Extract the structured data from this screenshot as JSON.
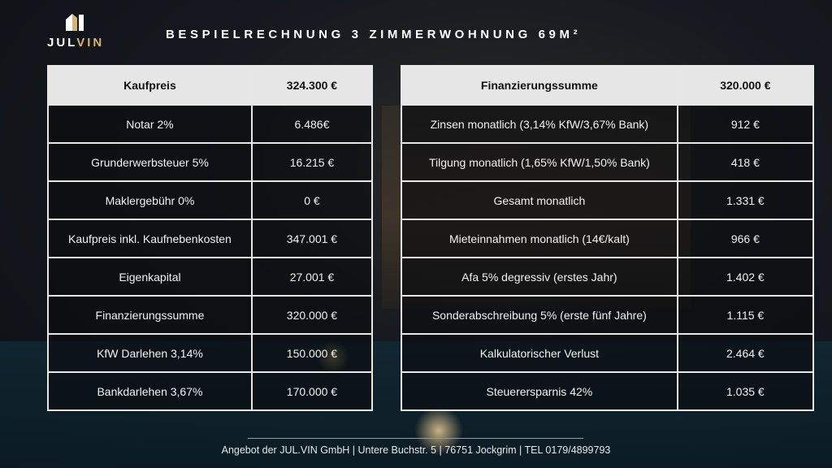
{
  "logo": {
    "text_main": "JUL",
    "text_accent": "VIN"
  },
  "title": "BESPIELRECHNUNG 3 ZIMMERWOHNUNG 69M²",
  "left_table": {
    "header": {
      "label": "Kaufpreis",
      "value": "324.300 €"
    },
    "rows": [
      {
        "label": "Notar 2%",
        "value": "6.486€"
      },
      {
        "label": "Grunderwerbsteuer 5%",
        "value": "16.215 €"
      },
      {
        "label": "Maklergebühr 0%",
        "value": "0 €"
      },
      {
        "label": "Kaufpreis inkl. Kaufnebenkosten",
        "value": "347.001 €"
      },
      {
        "label": "Eigenkapital",
        "value": "27.001 €"
      },
      {
        "label": "Finanzierungssumme",
        "value": "320.000 €"
      },
      {
        "label": "KfW Darlehen 3,14%",
        "value": "150.000 €"
      },
      {
        "label": "Bankdarlehen 3,67%",
        "value": "170.000 €"
      }
    ]
  },
  "right_table": {
    "header": {
      "label": "Finanzierungssumme",
      "value": "320.000 €"
    },
    "rows": [
      {
        "label": "Zinsen monatlich (3,14% KfW/3,67% Bank)",
        "value": "912 €"
      },
      {
        "label": "Tilgung monatlich (1,65% KfW/1,50% Bank)",
        "value": "418 €"
      },
      {
        "label": "Gesamt monatlich",
        "value": "1.331 €"
      },
      {
        "label": "Mieteinnahmen monatlich (14€/kalt)",
        "value": "966 €"
      },
      {
        "label": "Afa 5% degressiv (erstes Jahr)",
        "value": "1.402 €"
      },
      {
        "label": "Sonderabschreibung 5% (erste fünf Jahre)",
        "value": "1.115 €"
      },
      {
        "label": "Kalkulatorischer Verlust",
        "value": "2.464 €"
      },
      {
        "label": "Steuerersparnis 42%",
        "value": "1.035 €"
      }
    ]
  },
  "footer": "Angebot der JUL.VIN GmbH | Untere Buchstr. 5 | 76751 Jockgrim | TEL 0179/4899793",
  "colors": {
    "accent": "#d7b46a",
    "header_bg": "#e6e6e6",
    "border": "#e7e7e7"
  }
}
